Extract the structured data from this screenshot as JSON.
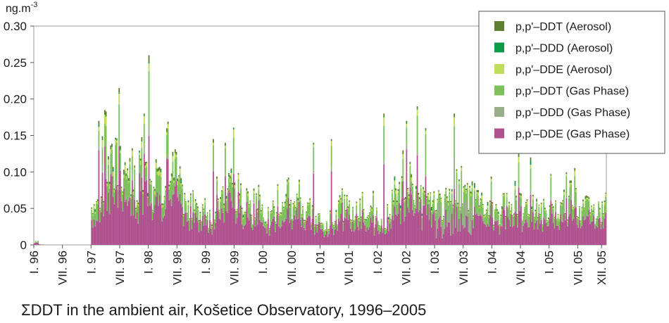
{
  "caption": "ΣDDT in the ambient air, Košetice Observatory, 1996–2005",
  "chart_data": {
    "type": "bar",
    "stacked": true,
    "title": "",
    "ylabel": "ng.m",
    "ylabel_sup": "-3",
    "ylim": [
      0,
      0.3
    ],
    "yticks": [
      0,
      0.05,
      0.1,
      0.15,
      0.2,
      0.25,
      0.3
    ],
    "ytick_labels": [
      "0",
      "0.05",
      "0.10",
      "0.15",
      "0.20",
      "0.25",
      "0.30"
    ],
    "xticks": [
      {
        "label": "I. 96",
        "t": 0
      },
      {
        "label": "VII. 96",
        "t": 6
      },
      {
        "label": "I. 97",
        "t": 12
      },
      {
        "label": "VII. 97",
        "t": 18
      },
      {
        "label": "I. 98",
        "t": 24
      },
      {
        "label": "VII. 98",
        "t": 30
      },
      {
        "label": "I. 99",
        "t": 36
      },
      {
        "label": "VII. 99",
        "t": 42
      },
      {
        "label": "I. 00",
        "t": 48
      },
      {
        "label": "VII. 00",
        "t": 54
      },
      {
        "label": "I. 01",
        "t": 60
      },
      {
        "label": "VII. 01",
        "t": 66
      },
      {
        "label": "I. 02",
        "t": 72
      },
      {
        "label": "VII. 02",
        "t": 78
      },
      {
        "label": "I. 03",
        "t": 84
      },
      {
        "label": "VII. 03",
        "t": 90
      },
      {
        "label": "I. 04",
        "t": 96
      },
      {
        "label": "VII. 04",
        "t": 102
      },
      {
        "label": "I. 05",
        "t": 108
      },
      {
        "label": "VII. 05",
        "t": 114
      },
      {
        "label": "XII. 05",
        "t": 119
      }
    ],
    "x_range_months": [
      0,
      120
    ],
    "legend_position": "top-right",
    "series": [
      {
        "name": "p,p'–DDT (Aerosol)",
        "color": "#5f7f32",
        "stack_order": 6
      },
      {
        "name": "p,p'–DDD (Aerosol)",
        "color": "#0f9a48",
        "stack_order": 5
      },
      {
        "name": "p,p'–DDE (Aerosol)",
        "color": "#bfdc5a",
        "stack_order": 4
      },
      {
        "name": "p,p'–DDT (Gas Phase)",
        "color": "#7cc15a",
        "stack_order": 3
      },
      {
        "name": "p,p'–DDD (Gas Phase)",
        "color": "#98ad8a",
        "stack_order": 2
      },
      {
        "name": "p,p'–DDE (Gas Phase)",
        "color": "#b0528f",
        "stack_order": 1
      }
    ],
    "monthly_totals": [
      0.005,
      0.001,
      0.0,
      0.0,
      0.0,
      0.0,
      0.0,
      0.0,
      0.0,
      0.0,
      0.0,
      0.0,
      0.06,
      0.07,
      0.08,
      0.1,
      0.11,
      0.13,
      0.12,
      0.1,
      0.11,
      0.09,
      0.12,
      0.09,
      0.08,
      0.09,
      0.1,
      0.08,
      0.14,
      0.12,
      0.09,
      0.07,
      0.06,
      0.06,
      0.06,
      0.05,
      0.04,
      0.05,
      0.06,
      0.07,
      0.08,
      0.09,
      0.08,
      0.07,
      0.07,
      0.05,
      0.06,
      0.05,
      0.03,
      0.04,
      0.05,
      0.06,
      0.06,
      0.06,
      0.05,
      0.06,
      0.06,
      0.05,
      0.05,
      0.04,
      0.03,
      0.03,
      0.04,
      0.05,
      0.06,
      0.06,
      0.05,
      0.05,
      0.06,
      0.04,
      0.04,
      0.04,
      0.03,
      0.04,
      0.05,
      0.06,
      0.07,
      0.08,
      0.09,
      0.08,
      0.08,
      0.07,
      0.06,
      0.06,
      0.07,
      0.06,
      0.07,
      0.08,
      0.08,
      0.09,
      0.08,
      0.07,
      0.07,
      0.06,
      0.05,
      0.05,
      0.05,
      0.05,
      0.06,
      0.06,
      0.07,
      0.06,
      0.06,
      0.05,
      0.06,
      0.05,
      0.05,
      0.05,
      0.05,
      0.05,
      0.06,
      0.06,
      0.07,
      0.07,
      0.06,
      0.06,
      0.06,
      0.05,
      0.05,
      0.05
    ],
    "peaks": [
      {
        "t": 13.6,
        "total": 0.17
      },
      {
        "t": 14.8,
        "total": 0.185
      },
      {
        "t": 17.8,
        "total": 0.215
      },
      {
        "t": 23.0,
        "total": 0.18
      },
      {
        "t": 24.0,
        "total": 0.26
      },
      {
        "t": 27.8,
        "total": 0.16
      },
      {
        "t": 37.5,
        "total": 0.145
      },
      {
        "t": 40.0,
        "total": 0.14
      },
      {
        "t": 58.4,
        "total": 0.14
      },
      {
        "t": 62.3,
        "total": 0.145
      },
      {
        "t": 73.2,
        "total": 0.18
      },
      {
        "t": 78.0,
        "total": 0.17
      },
      {
        "t": 80.3,
        "total": 0.19
      },
      {
        "t": 82.0,
        "total": 0.16
      },
      {
        "t": 88.0,
        "total": 0.18
      },
      {
        "t": 101.4,
        "total": 0.125
      },
      {
        "t": 104.0,
        "total": 0.12
      }
    ]
  }
}
